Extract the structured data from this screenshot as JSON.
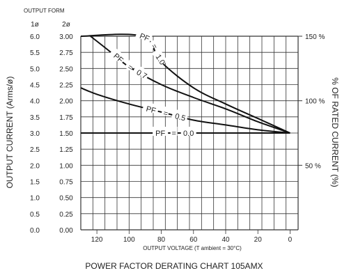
{
  "chart_data": {
    "type": "line",
    "title": "POWER FACTOR DERATING CHART 105AMX",
    "output_form_label": "OUTPUT FORM",
    "left_axis_headers": [
      "1ø",
      "2ø"
    ],
    "xlabel": "OUTPUT VOLTAGE (T ambient = 30°C)",
    "ylabel": "OUTPUT CURRENT (Arms/ø)",
    "ylabel_right": "% OF RATED CURRENT (%)",
    "xlim": [
      130,
      -5
    ],
    "ylim": [
      0,
      6.0
    ],
    "x_ticks": [
      120,
      100,
      80,
      60,
      40,
      20,
      0
    ],
    "y_ticks_1phase": [
      "0.0",
      "0.5",
      "1.0",
      "1.5",
      "2.0",
      "2.5",
      "3.0",
      "3.5",
      "4.0",
      "4.5",
      "5.0",
      "5.5",
      "6.0"
    ],
    "y_ticks_2phase": [
      "0.00",
      "0.25",
      "0.50",
      "0.75",
      "1.00",
      "1.25",
      "1.50",
      "1.75",
      "2.00",
      "2.25",
      "2.50",
      "2.75",
      "3.00"
    ],
    "right_ticks": [
      {
        "label": "150 %",
        "value": 6.0
      },
      {
        "label": "100 %",
        "value": 4.0
      },
      {
        "label": "50 %",
        "value": 2.0
      }
    ],
    "grid": true,
    "series": [
      {
        "name": "PF = 1.0",
        "label_words": [
          "PF",
          "=",
          "1.0"
        ],
        "x": [
          130,
          92,
          80,
          60,
          40,
          20,
          0
        ],
        "y": [
          6.0,
          6.0,
          5.2,
          4.4,
          3.9,
          3.45,
          3.0
        ]
      },
      {
        "name": "PF = 0.7",
        "label_words": [
          "PF",
          "=",
          "0.7"
        ],
        "x": [
          124,
          110,
          100,
          80,
          60,
          40,
          20,
          0
        ],
        "y": [
          6.0,
          5.45,
          5.05,
          4.5,
          4.1,
          3.75,
          3.35,
          3.0
        ]
      },
      {
        "name": "PF = 0.5",
        "label_words": [
          "PF",
          "=",
          "0.5"
        ],
        "x": [
          130,
          120,
          100,
          80,
          60,
          40,
          20,
          0
        ],
        "y": [
          4.4,
          4.2,
          3.9,
          3.65,
          3.4,
          3.25,
          3.1,
          3.0
        ]
      },
      {
        "name": "PF = 0.0",
        "label_words": [
          "PF",
          "=",
          "0.0"
        ],
        "x": [
          130,
          0
        ],
        "y": [
          3.0,
          3.0
        ]
      }
    ]
  }
}
